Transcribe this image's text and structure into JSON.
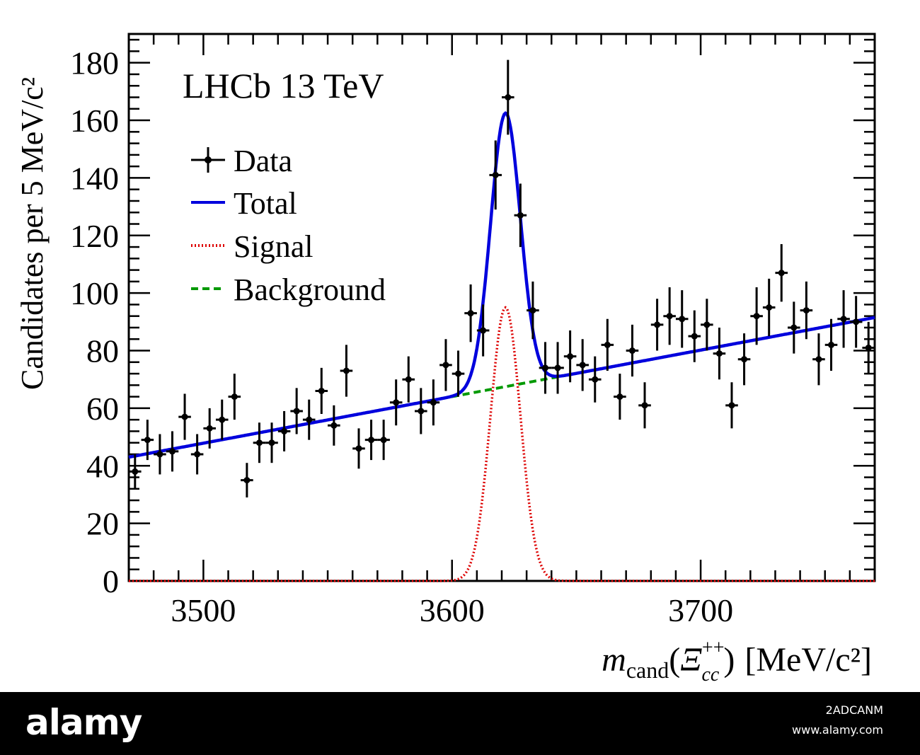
{
  "chart_data": {
    "type": "scatter",
    "experiment_label": "LHCb 13 TeV",
    "xlabel": {
      "main": "m",
      "sub": "cand",
      "open": "(",
      "particle": "Ξ",
      "sup": "++",
      "particle_sub": "cc",
      "close": ")",
      "unit": "[MeV/c²]"
    },
    "ylabel": "Candidates per 5 MeV/c²",
    "xlim": [
      3470,
      3770
    ],
    "ylim": [
      0,
      190
    ],
    "xticks": [
      3500,
      3600,
      3700
    ],
    "yticks": [
      0,
      20,
      40,
      60,
      80,
      100,
      120,
      140,
      160,
      180
    ],
    "legend": {
      "placement": "top-left",
      "entries": [
        {
          "label": "Data",
          "style": "marker"
        },
        {
          "label": "Total",
          "style": "solid",
          "color": "#0000dd"
        },
        {
          "label": "Signal",
          "style": "dotted",
          "color": "#dd0000"
        },
        {
          "label": "Background",
          "style": "dashed",
          "color": "#009900"
        }
      ]
    },
    "bin_width": 5,
    "data": {
      "name": "Data",
      "x": [
        3472.5,
        3477.5,
        3482.5,
        3487.5,
        3492.5,
        3497.5,
        3502.5,
        3507.5,
        3512.5,
        3517.5,
        3522.5,
        3527.5,
        3532.5,
        3537.5,
        3542.5,
        3547.5,
        3552.5,
        3557.5,
        3562.5,
        3567.5,
        3572.5,
        3577.5,
        3582.5,
        3587.5,
        3592.5,
        3597.5,
        3602.5,
        3607.5,
        3612.5,
        3617.5,
        3622.5,
        3627.5,
        3632.5,
        3637.5,
        3642.5,
        3647.5,
        3652.5,
        3657.5,
        3662.5,
        3667.5,
        3672.5,
        3677.5,
        3682.5,
        3687.5,
        3692.5,
        3697.5,
        3702.5,
        3707.5,
        3712.5,
        3717.5,
        3722.5,
        3727.5,
        3732.5,
        3737.5,
        3742.5,
        3747.5,
        3752.5,
        3757.5,
        3762.5,
        3767.5
      ],
      "y": [
        38,
        49,
        44,
        45,
        57,
        44,
        53,
        56,
        64,
        35,
        48,
        48,
        52,
        59,
        56,
        66,
        54,
        73,
        46,
        49,
        49,
        62,
        70,
        59,
        62,
        75,
        72,
        93,
        87,
        141,
        168,
        127,
        94,
        74,
        74,
        78,
        75,
        70,
        82,
        64,
        80,
        61,
        89,
        92,
        91,
        85,
        89,
        79,
        61,
        77,
        92,
        95,
        107,
        88,
        94,
        77,
        82,
        91,
        90,
        81
      ],
      "yerr": [
        6,
        7,
        7,
        7,
        8,
        7,
        7,
        7,
        8,
        6,
        7,
        7,
        7,
        8,
        7,
        8,
        7,
        9,
        7,
        7,
        7,
        8,
        8,
        8,
        8,
        9,
        8,
        10,
        9,
        12,
        13,
        11,
        10,
        9,
        9,
        9,
        9,
        8,
        9,
        8,
        9,
        8,
        9,
        10,
        10,
        9,
        9,
        9,
        8,
        9,
        10,
        10,
        10,
        9,
        10,
        9,
        9,
        10,
        9,
        9
      ],
      "xerr": 2.5
    },
    "background": {
      "name": "Background",
      "x": [
        3470,
        3770
      ],
      "y": [
        43,
        91.5
      ]
    },
    "signal": {
      "name": "Signal",
      "mean": 3621.5,
      "sigma": 6.0,
      "peak": 95
    },
    "total": {
      "name": "Total"
    }
  },
  "footer": {
    "brand": "alamy",
    "image_id": "2ADCANM",
    "site": "www.alamy.com"
  }
}
